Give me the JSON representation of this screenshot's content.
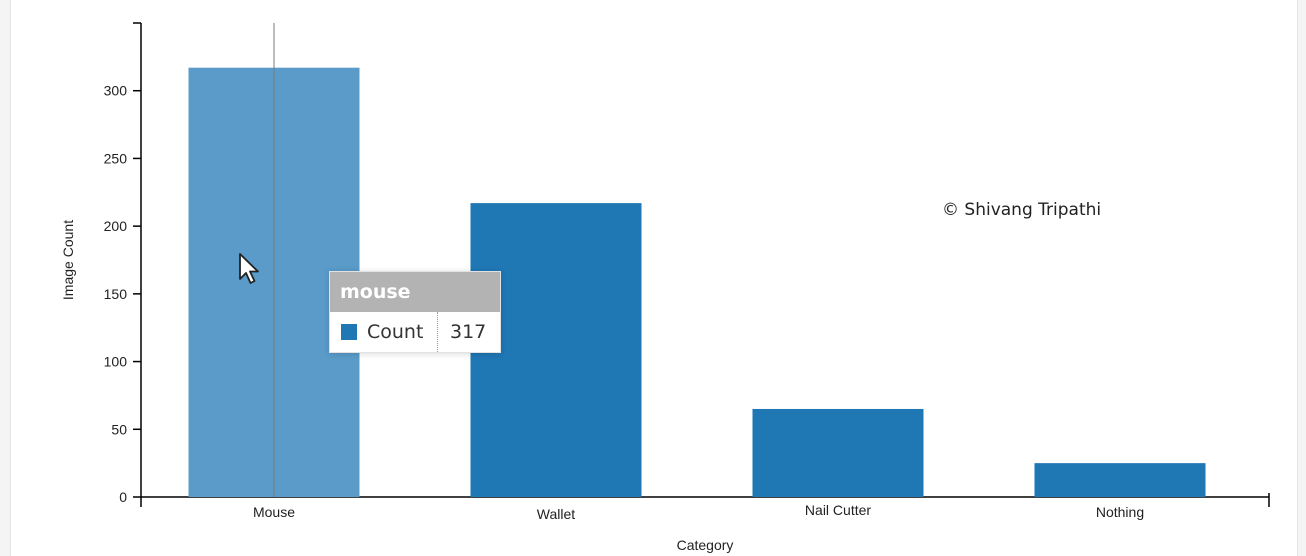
{
  "chart_data": {
    "type": "bar",
    "categories": [
      "Mouse",
      "Wallet",
      "Nail Cutter",
      "Nothing"
    ],
    "values": [
      317,
      217,
      65,
      25
    ],
    "xlabel": "Category",
    "ylabel": "Image Count",
    "ylim": [
      0,
      350
    ],
    "yticks": [
      0,
      50,
      100,
      150,
      200,
      250,
      300
    ],
    "bar_color": "#1f77b4",
    "highlight_color": "#5a9bc9",
    "highlighted_index": 0,
    "grid": false
  },
  "annotation": {
    "credit": "© Shivang Tripathi"
  },
  "tooltip": {
    "title": "mouse",
    "series_label": "Count",
    "value": "317",
    "swatch_color": "#1f77b4"
  }
}
